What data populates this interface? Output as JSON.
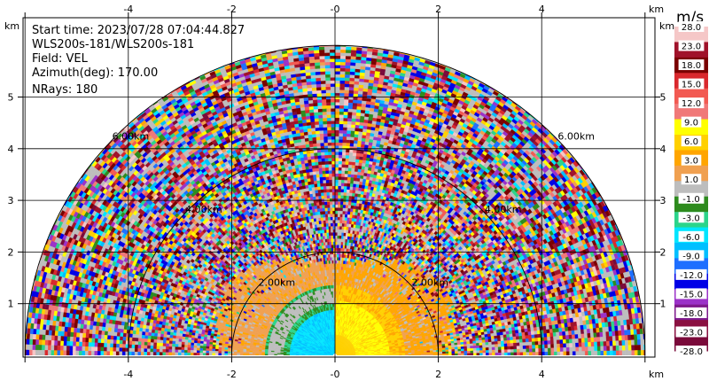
{
  "chart_data": {
    "type": "heatmap",
    "subtype": "polar-ppi-sector",
    "info": {
      "start_time": "Start time: 2023/07/28 07:04:44.827",
      "instrument": "WLS200s-181/WLS200s-181",
      "field": "Field: VEL",
      "azimuth": "Azimuth(deg): 170.00",
      "nrays": "NRays: 180"
    },
    "x_unit": "km",
    "y_unit": "km",
    "xlim": [
      -6.2,
      6.2
    ],
    "ylim": [
      -0.1,
      5.85
    ],
    "x_ticks": [
      -6,
      -4,
      -2,
      0,
      2,
      4,
      6
    ],
    "x_tick_labels": [
      "",
      "-4",
      "-2",
      "-0",
      "2",
      "4",
      ""
    ],
    "y_ticks": [
      1,
      2,
      3,
      4,
      5
    ],
    "y_tick_labels": [
      "1",
      "2",
      "3",
      "4",
      "5"
    ],
    "range_max_km": 6,
    "range_rings_km": [
      2,
      4,
      6
    ],
    "range_ring_labels": [
      "2.00km",
      "4.00km",
      "6.00km"
    ],
    "grid": true,
    "colorbar": {
      "label": "m/s",
      "tick_labels": [
        "28.0",
        "23.0",
        "18.0",
        "15.0",
        "12.0",
        "9.0",
        "6.0",
        "3.0",
        "1.0",
        "-1.0",
        "-3.0",
        "-6.0",
        "-9.0",
        "-12.0",
        "-15.0",
        "-18.0",
        "-23.0",
        "-28.0"
      ],
      "colors": [
        "#f5c7c7",
        "#a0122a",
        "#7a0000",
        "#d9282d",
        "#f25a52",
        "#f07878",
        "#ffff00",
        "#ffd000",
        "#ffa500",
        "#f0a050",
        "#bdbdbd",
        "#2e8b1e",
        "#2bd48a",
        "#00e5ff",
        "#00bfff",
        "#1e6fff",
        "#0000e6",
        "#9b32c8",
        "#7e1a8c",
        "#8a1040",
        "#7a0a3a"
      ]
    },
    "velocity_regions": [
      {
        "description": "near-field approaching (negative) flow west of center",
        "range_km": [
          0,
          1.3
        ],
        "azimuth_side": "west",
        "value_ms": -10
      },
      {
        "description": "near-field receding (positive) flow east of center",
        "range_km": [
          0,
          1.4
        ],
        "azimuth_side": "east",
        "value_ms": 6
      },
      {
        "description": "mid-range weak flow",
        "range_km": [
          1.2,
          2.3
        ],
        "value_ms": 2
      },
      {
        "description": "noise beyond about 2.3 km",
        "range_km": [
          2.3,
          6.0
        ],
        "value_ms": "random"
      }
    ]
  }
}
